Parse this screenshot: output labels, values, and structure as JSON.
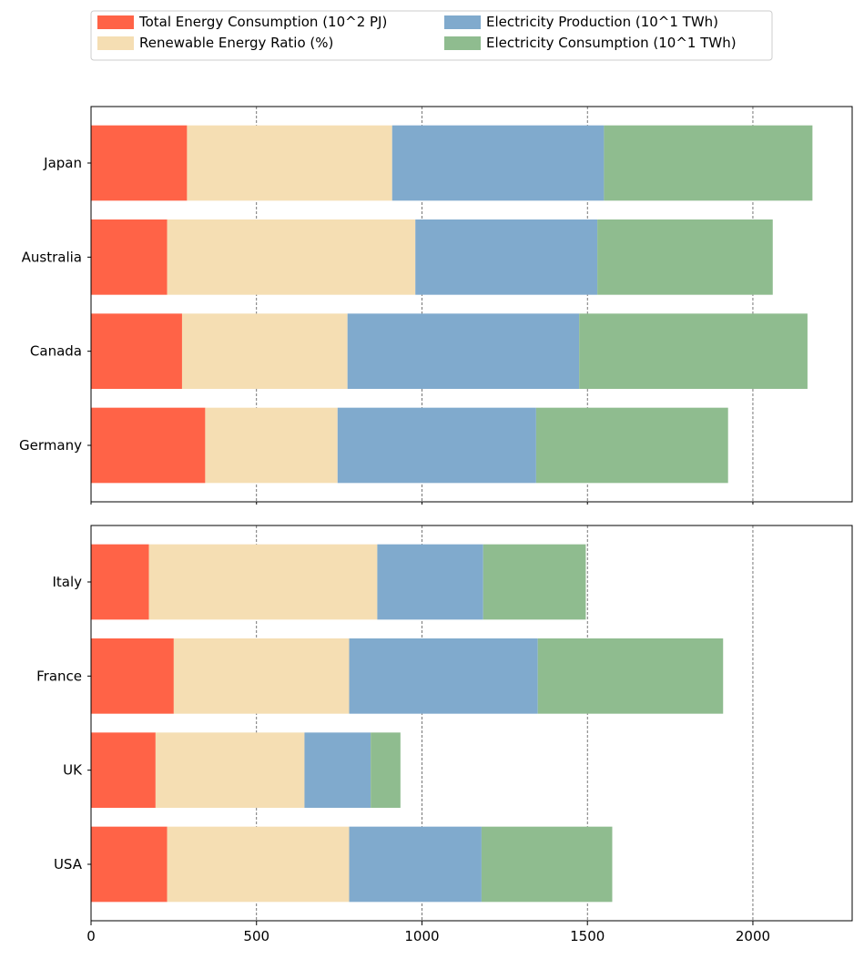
{
  "chart_data": {
    "type": "bar",
    "orientation": "horizontal",
    "stacked": true,
    "xlim": [
      0,
      2300
    ],
    "x_ticks": [
      0,
      500,
      1000,
      1500,
      2000
    ],
    "grid": "x-dashed",
    "legend_position": "top",
    "colors": [
      "#ff6347",
      "#f5deb3",
      "#80aacd",
      "#8fbc8f"
    ],
    "series_names": [
      "Total Energy Consumption (10^2 PJ)",
      "Renewable Energy Ratio (%)",
      "Electricity Production (10^1 TWh)",
      "Electricity Consumption (10^1 TWh)"
    ],
    "panels": [
      {
        "categories": [
          "Japan",
          "Australia",
          "Canada",
          "Germany"
        ],
        "series": [
          {
            "name": "Total Energy Consumption (10^2 PJ)",
            "values": [
              290,
              230,
              275,
              345
            ]
          },
          {
            "name": "Renewable Energy Ratio (%)",
            "values": [
              620,
              750,
              500,
              400
            ]
          },
          {
            "name": "Electricity Production (10^1 TWh)",
            "values": [
              640,
              550,
              700,
              600
            ]
          },
          {
            "name": "Electricity Consumption (10^1 TWh)",
            "values": [
              630,
              530,
              690,
              580
            ]
          }
        ]
      },
      {
        "categories": [
          "Italy",
          "France",
          "UK",
          "USA"
        ],
        "series": [
          {
            "name": "Total Energy Consumption (10^2 PJ)",
            "values": [
              175,
              250,
              195,
              230
            ]
          },
          {
            "name": "Renewable Energy Ratio (%)",
            "values": [
              690,
              530,
              450,
              550
            ]
          },
          {
            "name": "Electricity Production (10^1 TWh)",
            "values": [
              320,
              570,
              200,
              400
            ]
          },
          {
            "name": "Electricity Consumption (10^1 TWh)",
            "values": [
              310,
              560,
              90,
              395
            ]
          }
        ]
      }
    ]
  }
}
